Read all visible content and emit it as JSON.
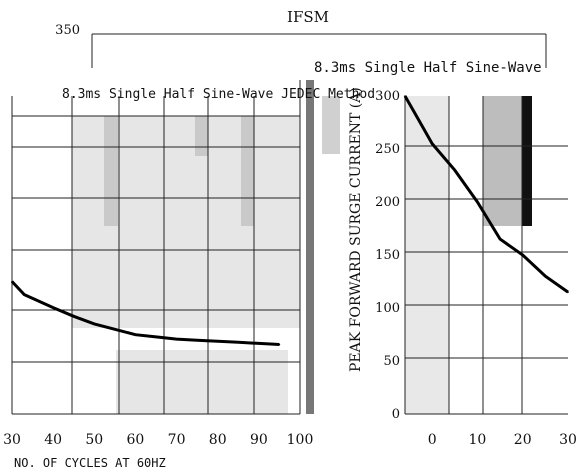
{
  "chart_data": [
    {
      "type": "line",
      "title": "IFSM",
      "xlabel": "NO. OF CYCLES AT 60HZ",
      "ylabel": "",
      "x": [
        30,
        33,
        40,
        45,
        50,
        55,
        60,
        65,
        70,
        75,
        80,
        85,
        90,
        95
      ],
      "xlim": [
        30,
        100
      ],
      "ylim": [
        0,
        350
      ],
      "x_ticks": [
        "30",
        "40",
        "50",
        "60",
        "70",
        "80",
        "90",
        "100"
      ],
      "y_ticks": [
        "350"
      ],
      "series": [
        {
          "name": "",
          "values": [
            122,
            110,
            98,
            90,
            83,
            78,
            73,
            71,
            69,
            68,
            67,
            66,
            65,
            64
          ]
        }
      ],
      "annotations": [
        "8.3ms Single Half Sine-Wave JEDEC Method"
      ],
      "grid": true
    },
    {
      "type": "line",
      "title": "",
      "xlabel": "",
      "ylabel": "PEAK FORWARD SURGE CURRENT (A)",
      "x": [
        -6,
        -4,
        0,
        5,
        10,
        15,
        20,
        25,
        30
      ],
      "xlim": [
        -6,
        30
      ],
      "ylim": [
        0,
        300
      ],
      "x_ticks": [
        "0",
        "10",
        "20",
        "30"
      ],
      "y_ticks": [
        "0",
        "50",
        "100",
        "150",
        "200",
        "250",
        "300"
      ],
      "series": [
        {
          "name": "",
          "values": [
            300,
            285,
            255,
            230,
            200,
            165,
            150,
            130,
            115
          ]
        }
      ],
      "annotations": [
        "8.3ms Single Half Sine-Wave"
      ],
      "grid": true
    }
  ]
}
